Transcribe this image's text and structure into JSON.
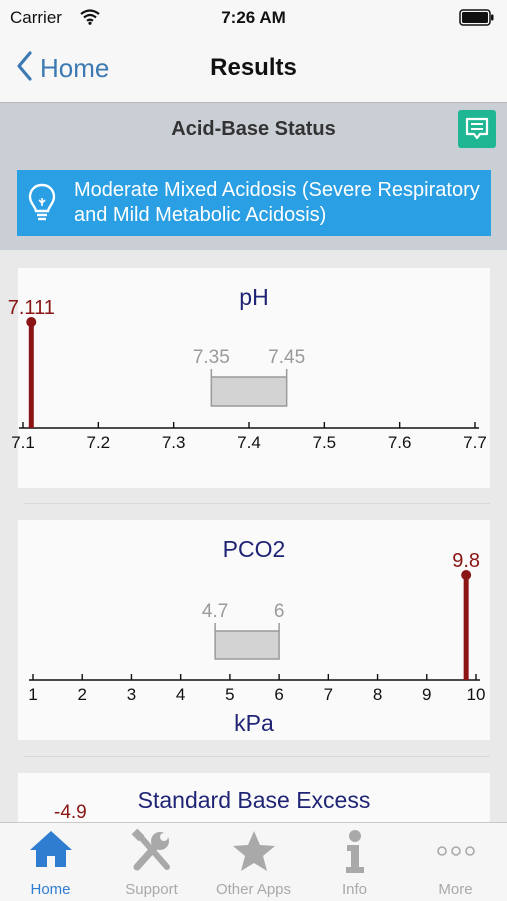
{
  "status_bar": {
    "carrier": "Carrier",
    "time": "7:26 AM"
  },
  "nav": {
    "back_label": "Home",
    "title": "Results"
  },
  "section": {
    "title": "Acid-Base Status"
  },
  "diagnosis": {
    "text": "Moderate Mixed Acidosis (Severe Respiratory and Mild Metabolic Acidosis)"
  },
  "chart_data": [
    {
      "type": "bar",
      "title": "pH",
      "xlabel": "",
      "xlim": [
        7.1,
        7.7
      ],
      "ticks": [
        "7.1",
        "7.2",
        "7.3",
        "7.4",
        "7.5",
        "7.6",
        "7.7"
      ],
      "tick_values": [
        7.1,
        7.2,
        7.3,
        7.4,
        7.5,
        7.6,
        7.7
      ],
      "normal_range": [
        7.35,
        7.45
      ],
      "normal_labels": [
        "7.35",
        "7.45"
      ],
      "value": 7.111,
      "value_label": "7.111"
    },
    {
      "type": "bar",
      "title": "PCO2",
      "xlabel": "kPa",
      "xlim": [
        1,
        10
      ],
      "ticks": [
        "1",
        "2",
        "3",
        "4",
        "5",
        "6",
        "7",
        "8",
        "9",
        "10"
      ],
      "tick_values": [
        1,
        2,
        3,
        4,
        5,
        6,
        7,
        8,
        9,
        10
      ],
      "normal_range": [
        4.7,
        6
      ],
      "normal_labels": [
        "4.7",
        "6"
      ],
      "value": 9.8,
      "value_label": "9.8"
    },
    {
      "type": "bar",
      "title": "Standard Base Excess",
      "value": -4.9,
      "value_label": "-4.9"
    }
  ],
  "tabs": [
    {
      "label": "Home",
      "icon": "home-icon",
      "active": true
    },
    {
      "label": "Support",
      "icon": "tools-icon",
      "active": false
    },
    {
      "label": "Other Apps",
      "icon": "star-icon",
      "active": false
    },
    {
      "label": "Info",
      "icon": "info-icon",
      "active": false
    },
    {
      "label": "More",
      "icon": "more-icon",
      "active": false
    }
  ],
  "colors": {
    "accent": "#2f7dd1",
    "value_marker": "#8b1414",
    "chart_title": "#1f2475",
    "range_box": "#d3d3d3",
    "diagnosis_bg": "#2b9fe3",
    "comment_button": "#1fb793"
  }
}
